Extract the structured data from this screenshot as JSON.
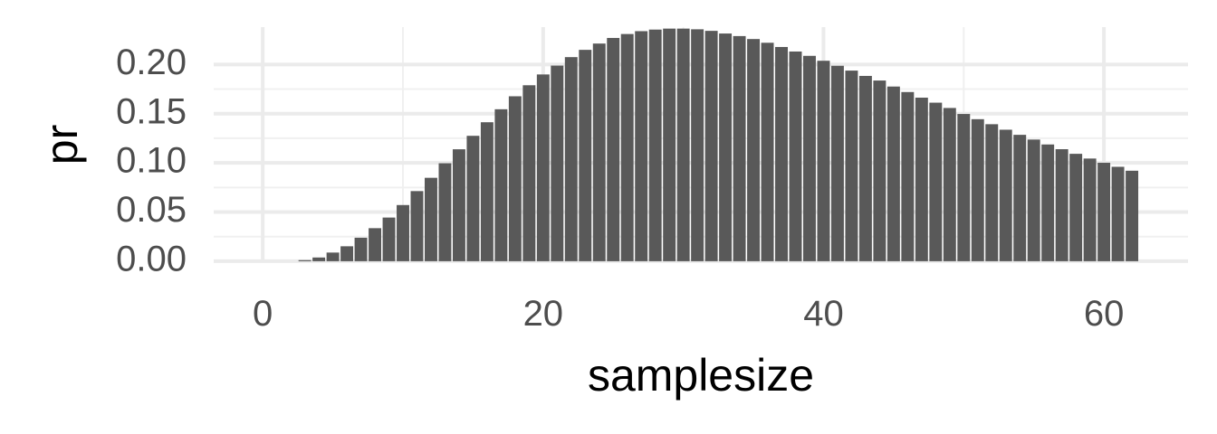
{
  "chart_data": {
    "type": "bar",
    "title": "",
    "xlabel": "samplesize",
    "ylabel": "pr",
    "xlim": [
      -3.5,
      66
    ],
    "ylim": [
      -0.001,
      0.238
    ],
    "x_ticks": [
      0,
      20,
      40,
      60
    ],
    "x_tick_labels": [
      "0",
      "20",
      "40",
      "60"
    ],
    "y_ticks": [
      0,
      0.05,
      0.1,
      0.15,
      0.2
    ],
    "y_tick_labels": [
      "0.00",
      "0.05",
      "0.10",
      "0.15",
      "0.20"
    ],
    "grid": true,
    "bar_color": "#595959",
    "x": [
      1,
      2,
      3,
      4,
      5,
      6,
      7,
      8,
      9,
      10,
      11,
      12,
      13,
      14,
      15,
      16,
      17,
      18,
      19,
      20,
      21,
      22,
      23,
      24,
      25,
      26,
      27,
      28,
      29,
      30,
      31,
      32,
      33,
      34,
      35,
      36,
      37,
      38,
      39,
      40,
      41,
      42,
      43,
      44,
      45,
      46,
      47,
      48,
      49,
      50,
      51,
      52,
      53,
      54,
      55,
      56,
      57,
      58,
      59,
      60,
      61,
      62
    ],
    "values": [
      0.0,
      0.0,
      0.0011,
      0.0038,
      0.0088,
      0.0152,
      0.0239,
      0.0336,
      0.0444,
      0.0571,
      0.0713,
      0.0848,
      0.0996,
      0.1138,
      0.1275,
      0.1413,
      0.1545,
      0.1677,
      0.1789,
      0.1899,
      0.1989,
      0.2075,
      0.2149,
      0.2213,
      0.227,
      0.231,
      0.2339,
      0.2355,
      0.2365,
      0.2365,
      0.2358,
      0.2342,
      0.2315,
      0.2289,
      0.2259,
      0.2221,
      0.2178,
      0.2132,
      0.2088,
      0.2038,
      0.1987,
      0.1938,
      0.1884,
      0.1837,
      0.1776,
      0.172,
      0.1663,
      0.1612,
      0.1558,
      0.1497,
      0.1444,
      0.1393,
      0.1337,
      0.1285,
      0.1237,
      0.1187,
      0.1139,
      0.1092,
      0.1044,
      0.1001,
      0.096,
      0.092
    ]
  }
}
